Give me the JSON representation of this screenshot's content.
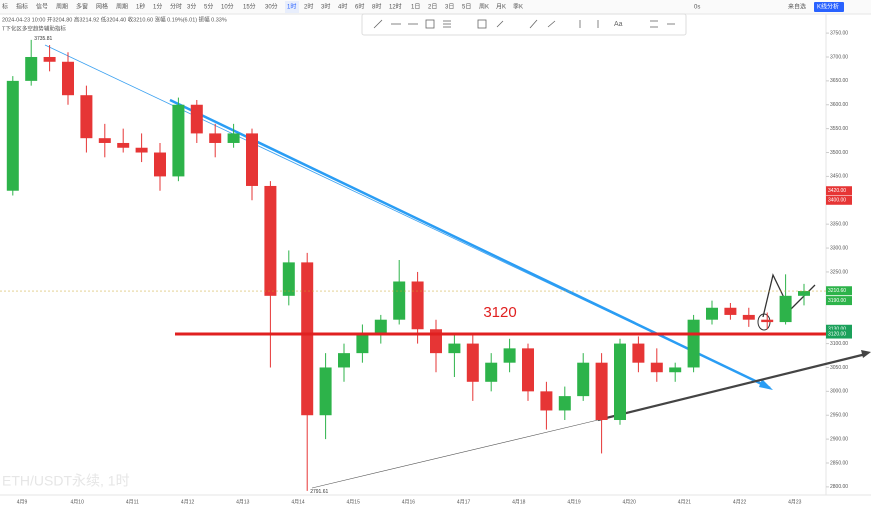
{
  "toolbar": {
    "left": [
      "标",
      "指标",
      "信号",
      "周期",
      "多窗",
      "网格",
      "周期"
    ],
    "periods": [
      "1秒",
      "1分",
      "分时",
      "3分",
      "5分",
      "10分",
      "15分",
      "30分",
      "1时",
      "2时",
      "3时",
      "4时",
      "6时",
      "8时",
      "12时",
      "1日",
      "2日",
      "3日",
      "5日",
      "周K",
      "月K",
      "季K"
    ],
    "active": "1时",
    "right": [
      "0s",
      "来自选",
      "K线分析"
    ]
  },
  "info": "2024-04-23 10:00 开3204.80 高3214.92 低3204.40 收3210.60 涨幅 0.19%(6.01) 振幅 0.33%",
  "indicator": "T下化区多空趋势辅助指标",
  "watermark": "ETH/USDT永续, 1时",
  "chart_data": {
    "type": "candlestick",
    "categories": [
      null,
      "4月9",
      null,
      null,
      "4月10",
      null,
      null,
      "4月11",
      null,
      null,
      "4月12",
      null,
      null,
      "4月13",
      null,
      null,
      "4月14",
      null,
      null,
      "4月15",
      null,
      null,
      "4月16",
      null,
      null,
      "4月17",
      null,
      null,
      "4月18",
      null,
      null,
      "4月19",
      null,
      null,
      "4月20",
      null,
      null,
      "4月21",
      null,
      null,
      "4月22",
      null,
      null,
      "4月23"
    ],
    "open": [
      3420,
      3650,
      3700,
      3690,
      3620,
      3530,
      3520,
      3510,
      3500,
      3450,
      3600,
      3540,
      3520,
      3540,
      3430,
      3200,
      3270,
      2950,
      3050,
      3080,
      3120,
      3150,
      3230,
      3130,
      3080,
      3100,
      3020,
      3060,
      3090,
      3000,
      2960,
      2990,
      3060,
      2940,
      3100,
      3060,
      3040,
      3050,
      3150,
      3175,
      3160,
      3150,
      3145,
      3200
    ],
    "high": [
      3660,
      3735.81,
      3725,
      3710,
      3640,
      3560,
      3550,
      3540,
      3520,
      3615,
      3610,
      3560,
      3560,
      3550,
      3440,
      3295,
      3290,
      3080,
      3100,
      3140,
      3160,
      3275,
      3250,
      3150,
      3120,
      3120,
      3080,
      3110,
      3100,
      3020,
      3010,
      3080,
      3080,
      3110,
      3115,
      3090,
      3060,
      3160,
      3190,
      3185,
      3175,
      3165,
      3245,
      3225
    ],
    "low": [
      3410,
      3640,
      3670,
      3600,
      3500,
      3490,
      3500,
      3480,
      3420,
      3440,
      3520,
      3490,
      3510,
      3400,
      3050,
      3180,
      2791.61,
      2900,
      3020,
      3060,
      3100,
      3140,
      3100,
      3040,
      3030,
      2980,
      3000,
      3040,
      2980,
      2920,
      2940,
      2980,
      2870,
      2930,
      3040,
      3020,
      3020,
      3040,
      3140,
      3150,
      3135,
      3130,
      3140,
      3180
    ],
    "close": [
      3650,
      3700,
      3690,
      3620,
      3530,
      3520,
      3510,
      3500,
      3450,
      3600,
      3540,
      3520,
      3540,
      3430,
      3200,
      3270,
      2950,
      3050,
      3080,
      3120,
      3150,
      3230,
      3130,
      3080,
      3100,
      3020,
      3060,
      3090,
      3000,
      2960,
      2990,
      3060,
      2940,
      3100,
      3060,
      3040,
      3050,
      3150,
      3175,
      3160,
      3150,
      3145,
      3200,
      3210
    ],
    "up_color": "#2db34a",
    "down_color": "#e63535",
    "high_label": "3735.81",
    "low_label": "2791.61",
    "ylim": [
      2783,
      3790
    ],
    "yticks": [
      {
        "value": 2800,
        "label": "2800.00"
      },
      {
        "value": 2850,
        "label": "2850.00"
      },
      {
        "value": 2900,
        "label": "2900.00"
      },
      {
        "value": 2950,
        "label": "2950.00"
      },
      {
        "value": 3000,
        "label": "3000.00"
      },
      {
        "value": 3050,
        "label": "3050.00"
      },
      {
        "value": 3100,
        "label": "3100.00"
      },
      {
        "value": 3250,
        "label": "3250.00"
      },
      {
        "value": 3300,
        "label": "3300.00"
      },
      {
        "value": 3350,
        "label": "3350.00"
      },
      {
        "value": 3450,
        "label": "3450.00"
      },
      {
        "value": 3500,
        "label": "3500.00"
      },
      {
        "value": 3550,
        "label": "3550.00"
      },
      {
        "value": 3600,
        "label": "3600.00"
      },
      {
        "value": 3650,
        "label": "3650.00"
      },
      {
        "value": 3700,
        "label": "3700.00"
      },
      {
        "value": 3750,
        "label": "3750.00"
      }
    ],
    "price_tags": [
      {
        "value": 3420,
        "label": "3420.00",
        "color": "#e63535"
      },
      {
        "value": 3400,
        "label": "3400.00",
        "color": "#e63535"
      },
      {
        "value": 3210.6,
        "label": "3210.60",
        "color": "#2db34a"
      },
      {
        "value": 3190,
        "label": "3190.00",
        "color": "#2db34a"
      },
      {
        "value": 3130,
        "label": "3130.00",
        "color": "#1aa05a"
      },
      {
        "value": 3120,
        "label": "3120.00",
        "color": "#1aa05a"
      }
    ],
    "level": 3120,
    "level_color": "#e02020"
  }
}
